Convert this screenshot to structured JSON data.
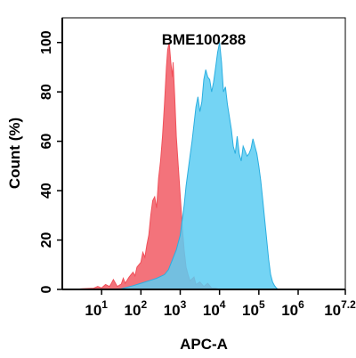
{
  "chart_data": {
    "type": "area",
    "title": "BME100288",
    "xlabel": "APC-A",
    "ylabel": "Count (%)",
    "x_scale": "log",
    "xlim": [
      0,
      7.2
    ],
    "ylim": [
      0,
      110
    ],
    "x_ticks": [
      {
        "base": "10",
        "exp": "1",
        "value": 1
      },
      {
        "base": "10",
        "exp": "2",
        "value": 2
      },
      {
        "base": "10",
        "exp": "3",
        "value": 3
      },
      {
        "base": "10",
        "exp": "4",
        "value": 4
      },
      {
        "base": "10",
        "exp": "5",
        "value": 5
      },
      {
        "base": "10",
        "exp": "6",
        "value": 6
      },
      {
        "base": "10",
        "exp": "7.2",
        "value": 7.2
      }
    ],
    "y_ticks": [
      "0",
      "20",
      "40",
      "60",
      "80",
      "100"
    ],
    "grid": false,
    "series": [
      {
        "color": "#f0505a",
        "fill": "#f0505a",
        "opacity": 0.8,
        "points": [
          [
            0.3,
            0
          ],
          [
            0.5,
            0.3
          ],
          [
            0.8,
            0.5
          ],
          [
            0.9,
            1.2
          ],
          [
            1.0,
            0.6
          ],
          [
            1.1,
            2.0
          ],
          [
            1.2,
            1.2
          ],
          [
            1.25,
            2.5
          ],
          [
            1.3,
            4.0
          ],
          [
            1.4,
            1.2
          ],
          [
            1.5,
            2.2
          ],
          [
            1.55,
            4.5
          ],
          [
            1.6,
            2.5
          ],
          [
            1.7,
            5.0
          ],
          [
            1.8,
            7.0
          ],
          [
            1.85,
            5.5
          ],
          [
            1.9,
            9.0
          ],
          [
            2.0,
            11.0
          ],
          [
            2.05,
            15.0
          ],
          [
            2.1,
            13.0
          ],
          [
            2.15,
            18.0
          ],
          [
            2.2,
            22.0
          ],
          [
            2.25,
            30.0
          ],
          [
            2.3,
            36.0
          ],
          [
            2.35,
            37.5
          ],
          [
            2.4,
            33.0
          ],
          [
            2.45,
            45.0
          ],
          [
            2.5,
            52.0
          ],
          [
            2.55,
            62.0
          ],
          [
            2.6,
            75.0
          ],
          [
            2.65,
            90.0
          ],
          [
            2.68,
            97.0
          ],
          [
            2.72,
            100.0
          ],
          [
            2.76,
            92.0
          ],
          [
            2.8,
            86.0
          ],
          [
            2.82,
            92.0
          ],
          [
            2.86,
            78.0
          ],
          [
            2.9,
            62.0
          ],
          [
            2.95,
            50.0
          ],
          [
            3.0,
            38.0
          ],
          [
            3.05,
            26.0
          ],
          [
            3.1,
            16.0
          ],
          [
            3.15,
            9.0
          ],
          [
            3.2,
            6.0
          ],
          [
            3.25,
            3.5
          ],
          [
            3.35,
            5.0
          ],
          [
            3.4,
            2.0
          ],
          [
            3.5,
            3.0
          ],
          [
            3.6,
            1.2
          ],
          [
            3.7,
            2.5
          ],
          [
            3.8,
            0.5
          ],
          [
            3.9,
            0.5
          ],
          [
            4.0,
            0
          ]
        ]
      },
      {
        "color": "#2aaee0",
        "fill": "#5ccdf2",
        "opacity": 0.85,
        "points": [
          [
            1.1,
            0
          ],
          [
            1.5,
            0.3
          ],
          [
            1.8,
            1.5
          ],
          [
            2.0,
            2.5
          ],
          [
            2.2,
            3.5
          ],
          [
            2.4,
            4.5
          ],
          [
            2.6,
            6.0
          ],
          [
            2.7,
            8.0
          ],
          [
            2.8,
            12.0
          ],
          [
            2.9,
            16.0
          ],
          [
            3.0,
            22.0
          ],
          [
            3.05,
            28.0
          ],
          [
            3.1,
            34.0
          ],
          [
            3.15,
            42.0
          ],
          [
            3.2,
            48.0
          ],
          [
            3.25,
            54.0
          ],
          [
            3.3,
            60.0
          ],
          [
            3.35,
            67.0
          ],
          [
            3.4,
            74.0
          ],
          [
            3.45,
            78.0
          ],
          [
            3.5,
            72.0
          ],
          [
            3.55,
            76.0
          ],
          [
            3.6,
            85.0
          ],
          [
            3.65,
            89.0
          ],
          [
            3.7,
            86.0
          ],
          [
            3.75,
            85.0
          ],
          [
            3.8,
            80.0
          ],
          [
            3.85,
            84.0
          ],
          [
            3.9,
            90.0
          ],
          [
            3.95,
            96.0
          ],
          [
            4.0,
            100.0
          ],
          [
            4.05,
            92.0
          ],
          [
            4.1,
            80.0
          ],
          [
            4.15,
            82.0
          ],
          [
            4.2,
            75.0
          ],
          [
            4.25,
            70.0
          ],
          [
            4.3,
            65.0
          ],
          [
            4.35,
            58.0
          ],
          [
            4.4,
            55.0
          ],
          [
            4.45,
            62.0
          ],
          [
            4.5,
            55.0
          ],
          [
            4.55,
            52.0
          ],
          [
            4.6,
            58.0
          ],
          [
            4.65,
            56.0
          ],
          [
            4.7,
            54.0
          ],
          [
            4.75,
            55.0
          ],
          [
            4.8,
            57.0
          ],
          [
            4.85,
            61.0
          ],
          [
            4.9,
            58.0
          ],
          [
            4.95,
            55.0
          ],
          [
            5.0,
            50.0
          ],
          [
            5.05,
            44.0
          ],
          [
            5.1,
            36.0
          ],
          [
            5.15,
            28.0
          ],
          [
            5.2,
            20.0
          ],
          [
            5.25,
            12.0
          ],
          [
            5.3,
            6.0
          ],
          [
            5.35,
            3.0
          ],
          [
            5.4,
            1.5
          ],
          [
            5.45,
            0.5
          ],
          [
            5.5,
            0
          ]
        ]
      }
    ]
  }
}
